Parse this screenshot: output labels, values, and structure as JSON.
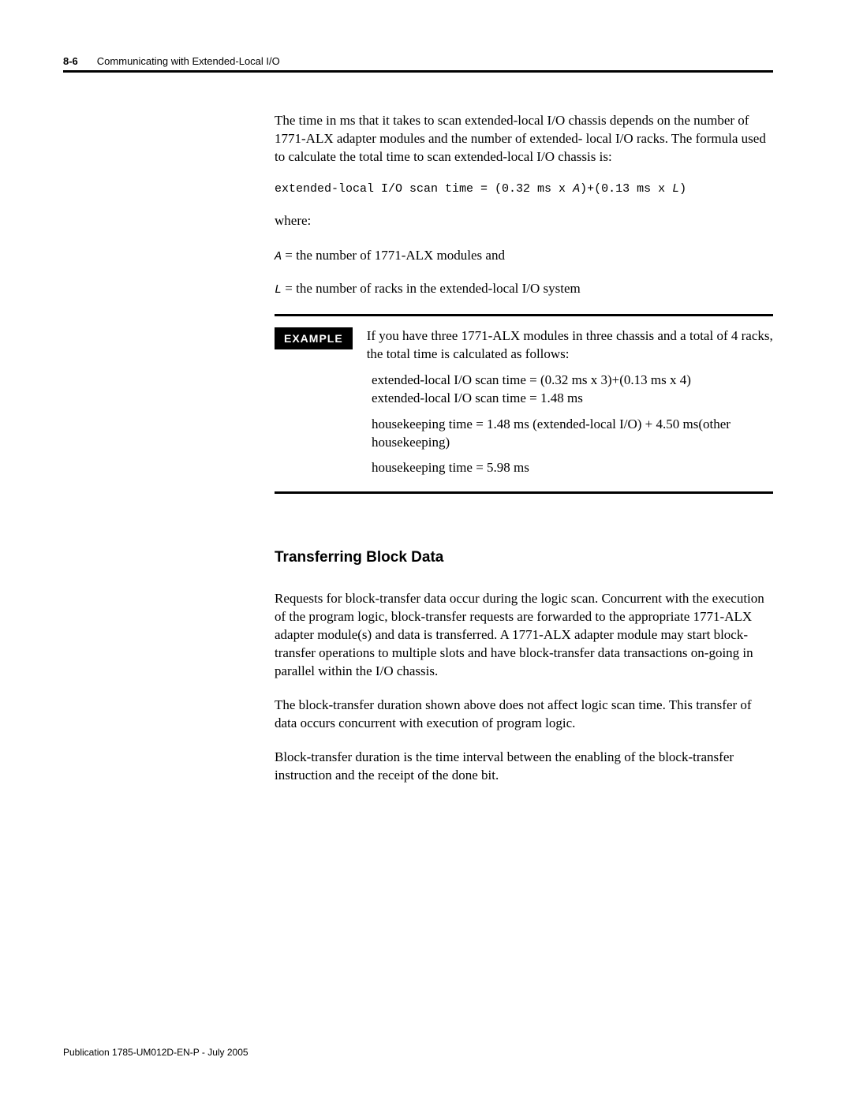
{
  "header": {
    "page_number": "8-6",
    "chapter_title": "Communicating with Extended-Local I/O"
  },
  "intro_paragraph": "The time in ms that it takes to scan extended-local I/O chassis depends on the number of 1771-ALX adapter modules and the number of extended- local I/O racks. The formula used to calculate the total time to scan extended-local I/O chassis is:",
  "formula": {
    "prefix": "extended-local I/O scan time = (0.32 ms x ",
    "var1": "A",
    "mid": ")+(0.13 ms x ",
    "var2": "L",
    "suffix": ")"
  },
  "where_label": "where:",
  "def_a": {
    "var": "A",
    "text": " = the number of 1771-ALX modules and"
  },
  "def_l": {
    "var": "L",
    "text": " = the number of racks in the extended-local I/O system"
  },
  "example": {
    "badge": "EXAMPLE",
    "lead": "If you have three 1771-ALX modules in three chassis and a total of 4 racks, the total time is calculated as follows:",
    "line1": "extended-local I/O scan time = (0.32 ms x 3)+(0.13 ms x 4)",
    "line2": "extended-local I/O scan time = 1.48 ms",
    "line3": "housekeeping time = 1.48 ms (extended-local I/O) + 4.50 ms(other housekeeping)",
    "line4": "housekeeping time = 5.98 ms"
  },
  "subheading": "Transferring Block Data",
  "body_p1": "Requests for block-transfer data occur during the logic scan. Concurrent with the execution of the program logic, block-transfer requests are forwarded to the appropriate 1771-ALX adapter module(s) and data is transferred. A 1771-ALX adapter module may start block-transfer operations to multiple slots and have block-transfer data transactions on-going in parallel within the I/O chassis.",
  "body_p2": "The block-transfer duration shown above does not affect logic scan time. This transfer of data occurs concurrent with execution of program logic.",
  "body_p3": "Block-transfer duration is the time interval between the enabling of the block-transfer instruction and the receipt of the done bit.",
  "footer": "Publication 1785-UM012D-EN-P - July 2005",
  "colors": {
    "text": "#000000",
    "background": "#ffffff",
    "badge_bg": "#000000",
    "badge_fg": "#ffffff",
    "rule": "#000000"
  }
}
